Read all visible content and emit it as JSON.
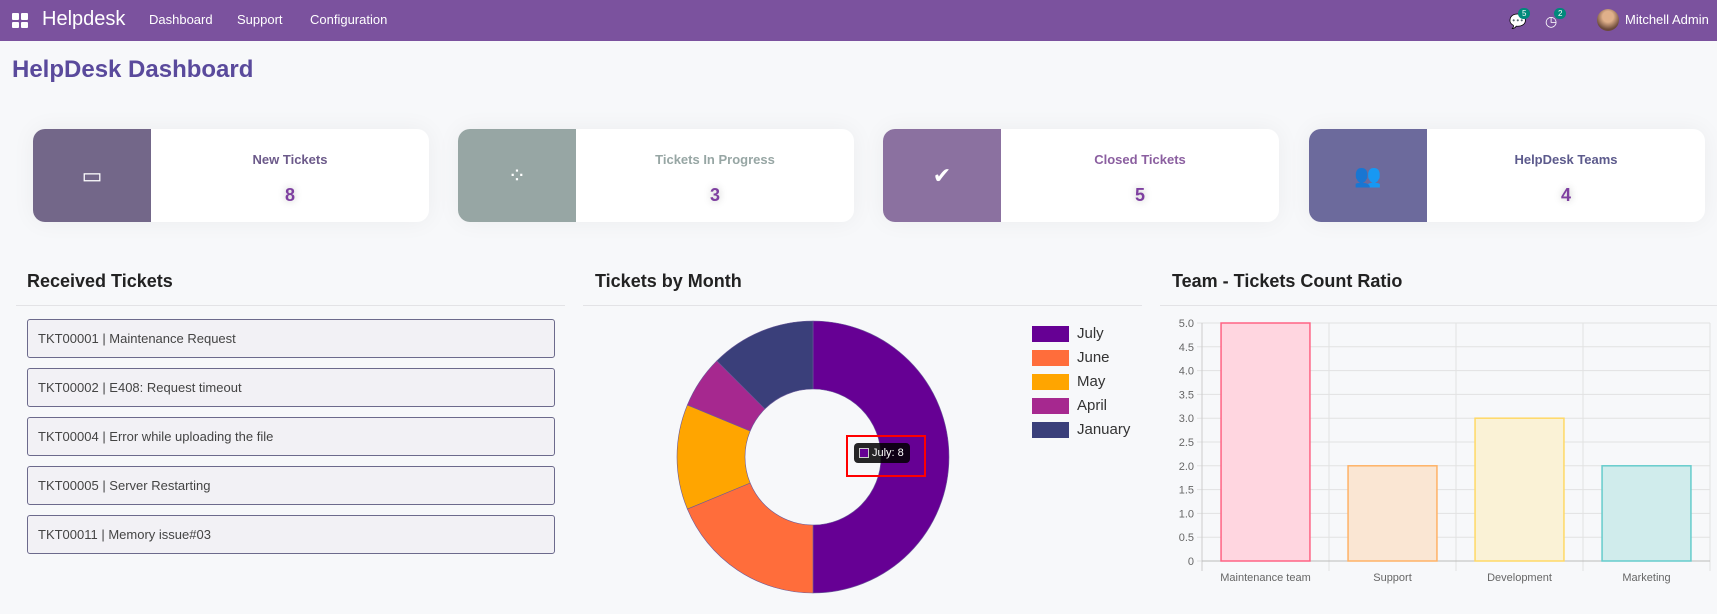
{
  "nav": {
    "brand": "Helpdesk",
    "menu": [
      "Dashboard",
      "Support",
      "Configuration"
    ],
    "messages_badge": "5",
    "activity_badge": "2",
    "user": "Mitchell Admin"
  },
  "page_title": "HelpDesk Dashboard",
  "cards": [
    {
      "label": "New Tickets",
      "value": "8",
      "icon": "inbox-icon",
      "color": "#736789",
      "label_color": "#6c5a8a"
    },
    {
      "label": "Tickets In Progress",
      "value": "3",
      "icon": "spinner-icon",
      "color": "#97a6a4",
      "label_color": "#97a6a4"
    },
    {
      "label": "Closed Tickets",
      "value": "5",
      "icon": "check-icon",
      "color": "#8b71a0",
      "label_color": "#8b5fa0"
    },
    {
      "label": "HelpDesk Teams",
      "value": "4",
      "icon": "users-icon",
      "color": "#6c6a9c",
      "label_color": "#5c5a8c"
    }
  ],
  "received": {
    "title": "Received Tickets",
    "items": [
      "TKT00001 | Maintenance Request",
      "TKT00002 | E408: Request timeout",
      "TKT00004 | Error while uploading the file",
      "TKT00005 | Server Restarting",
      "TKT00011 | Memory issue#03"
    ]
  },
  "chart_data": [
    {
      "type": "pie",
      "title": "Tickets by Month",
      "categories": [
        "July",
        "June",
        "May",
        "April",
        "January"
      ],
      "values": [
        8,
        3,
        2,
        1,
        2
      ],
      "colors": [
        "#660094",
        "#ff6d3b",
        "#ffa500",
        "#a6288f",
        "#3a3f7a"
      ],
      "legend": "right",
      "tooltip": "July: 8"
    },
    {
      "type": "bar",
      "title": "Team - Tickets Count Ratio",
      "categories": [
        "Maintenance team",
        "Support",
        "Development",
        "Marketing"
      ],
      "values": [
        5,
        2,
        3,
        2
      ],
      "ylim": [
        0,
        5
      ],
      "yticks": [
        "0",
        "0.5",
        "1.0",
        "1.5",
        "2.0",
        "2.5",
        "3.0",
        "3.5",
        "4.0",
        "4.5",
        "5.0"
      ],
      "fill": [
        "#ffd6e0",
        "#fae6d3",
        "#faf2d6",
        "#d0ecec"
      ],
      "stroke": [
        "#ff6384",
        "#ffb266",
        "#ffd966",
        "#66cccc"
      ]
    }
  ]
}
